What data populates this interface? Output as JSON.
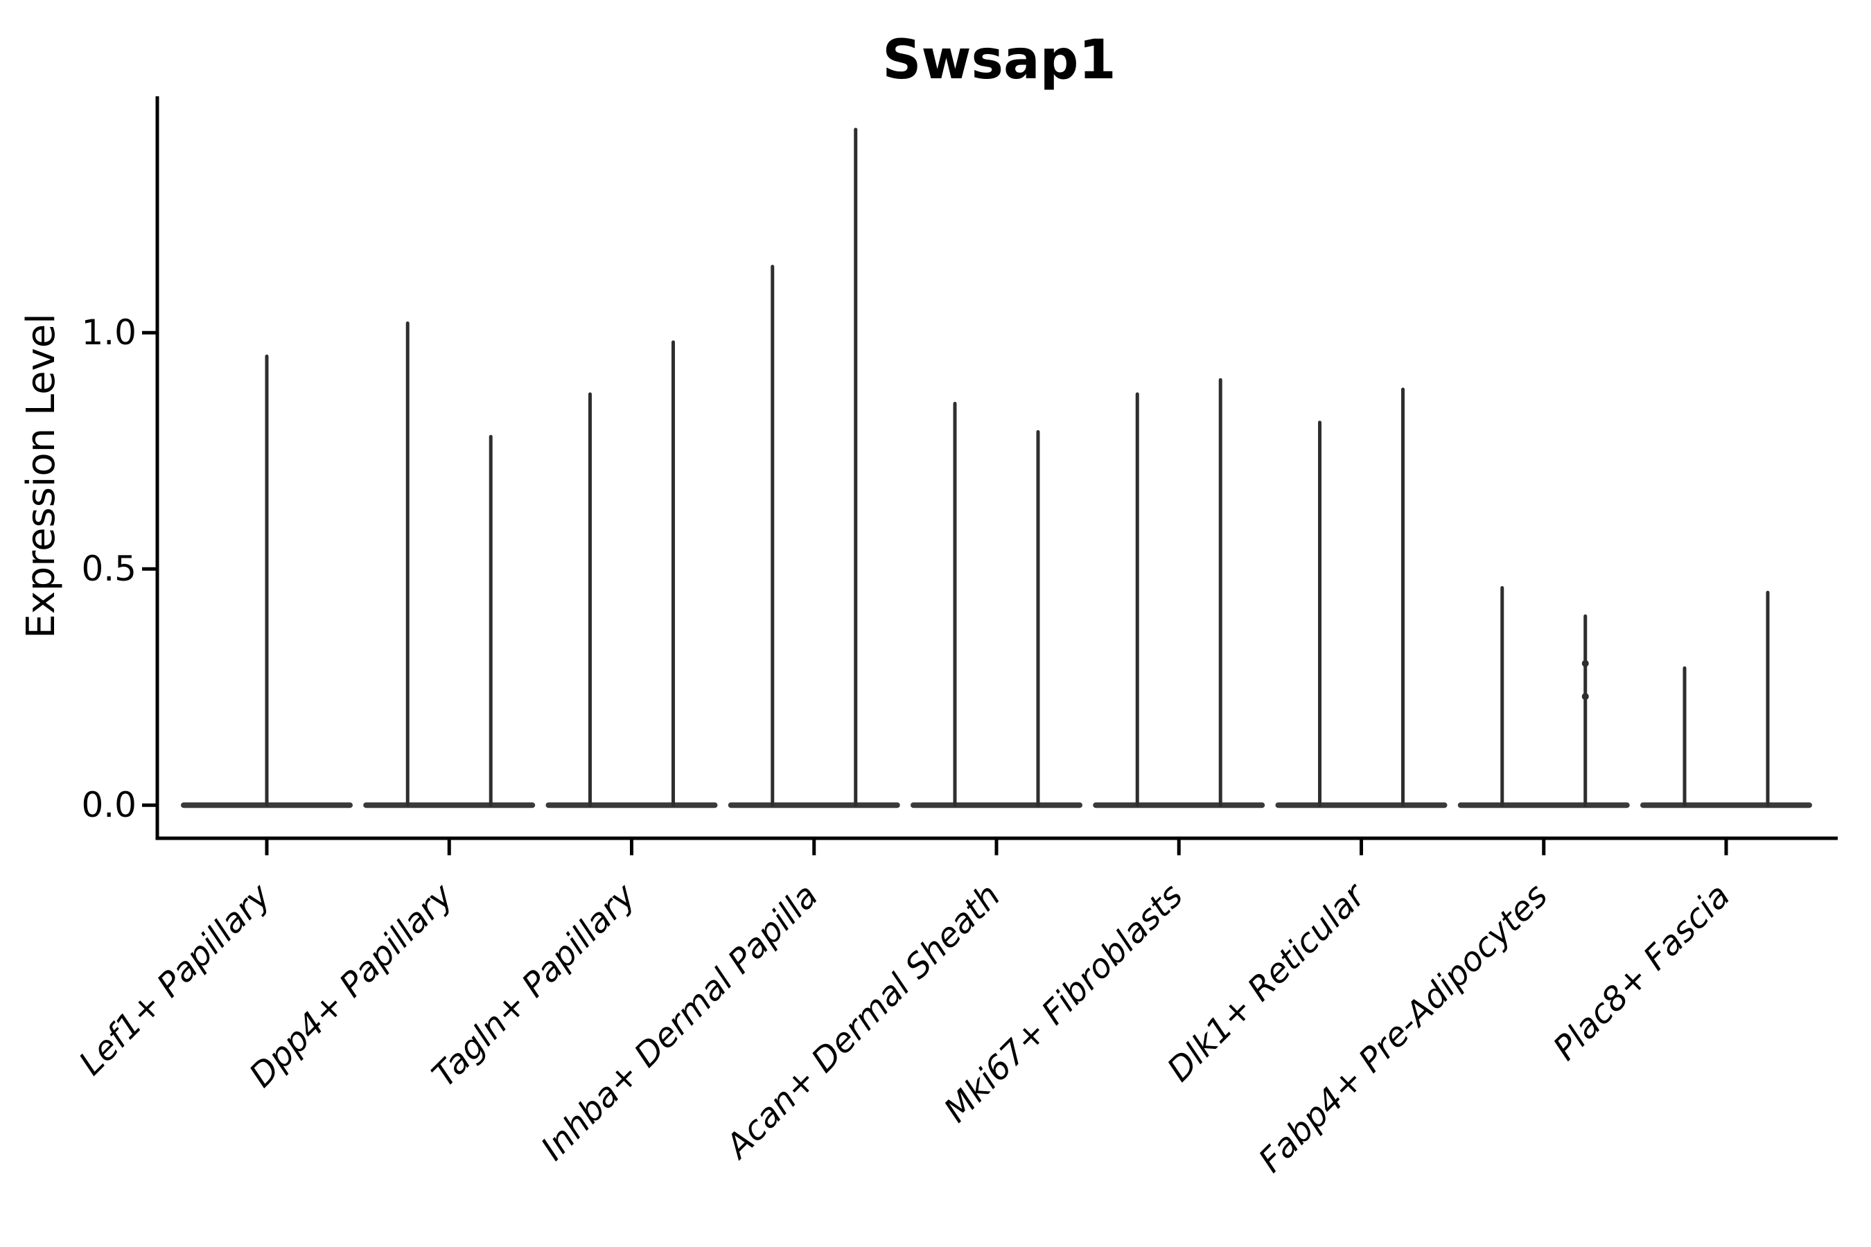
{
  "figure": {
    "title": "Swsap1",
    "background_color": "#ffffff"
  },
  "chart_data": {
    "type": "violin",
    "title": "Swsap1",
    "xlabel": "",
    "ylabel": "Expression Level",
    "legend": "none",
    "grid": false,
    "ylim": [
      -0.07,
      1.5
    ],
    "yticks": [
      "0.0",
      "0.5",
      "1.0"
    ],
    "ytick_values": [
      0.0,
      0.5,
      1.0
    ],
    "x_tick_rotation_deg": 45,
    "x_tick_font_style": "italic",
    "violin_shape": "needle-thin spikes with flat wide base at zero (most cells express 0)",
    "categories": [
      "Lef1+ Papillary",
      "Dpp4+ Papillary",
      "Tagln+ Papillary",
      "Inhba+ Dermal Papilla",
      "Acan+ Dermal Sheath",
      "Mki67+ Fibroblasts",
      "Dlk1+ Reticular",
      "Fabp4+ Pre-Adipocytes",
      "Plac8+ Fascia"
    ],
    "groups": [
      {
        "category": "Lef1+ Papillary",
        "violins": [
          {
            "offset": 0,
            "peak": 0.95,
            "dots": []
          }
        ]
      },
      {
        "category": "Dpp4+ Papillary",
        "violins": [
          {
            "offset": -1,
            "peak": 1.02,
            "dots": []
          },
          {
            "offset": 1,
            "peak": 0.78,
            "dots": []
          }
        ]
      },
      {
        "category": "Tagln+ Papillary",
        "violins": [
          {
            "offset": -1,
            "peak": 0.87,
            "dots": []
          },
          {
            "offset": 1,
            "peak": 0.98,
            "dots": []
          }
        ]
      },
      {
        "category": "Inhba+ Dermal Papilla",
        "violins": [
          {
            "offset": -1,
            "peak": 1.14,
            "dots": []
          },
          {
            "offset": 1,
            "peak": 1.43,
            "dots": []
          }
        ]
      },
      {
        "category": "Acan+ Dermal Sheath",
        "violins": [
          {
            "offset": -1,
            "peak": 0.85,
            "dots": []
          },
          {
            "offset": 1,
            "peak": 0.79,
            "dots": []
          }
        ]
      },
      {
        "category": "Mki67+ Fibroblasts",
        "violins": [
          {
            "offset": -1,
            "peak": 0.87,
            "dots": []
          },
          {
            "offset": 1,
            "peak": 0.9,
            "dots": []
          }
        ]
      },
      {
        "category": "Dlk1+ Reticular",
        "violins": [
          {
            "offset": -1,
            "peak": 0.81,
            "dots": []
          },
          {
            "offset": 1,
            "peak": 0.88,
            "dots": []
          }
        ]
      },
      {
        "category": "Fabp4+ Pre-Adipocytes",
        "violins": [
          {
            "offset": -1,
            "peak": 0.46,
            "dots": []
          },
          {
            "offset": 1,
            "peak": 0.4,
            "dots": [
              0.3,
              0.23
            ]
          }
        ]
      },
      {
        "category": "Plac8+ Fascia",
        "violins": [
          {
            "offset": -1,
            "peak": 0.29,
            "dots": []
          },
          {
            "offset": 1,
            "peak": 0.45,
            "dots": []
          }
        ]
      }
    ],
    "colors": {
      "violin_line": "#2e2e2e",
      "violin_base": "#3a3a3a",
      "axis": "#000000",
      "text": "#000000",
      "background": "#ffffff"
    }
  }
}
